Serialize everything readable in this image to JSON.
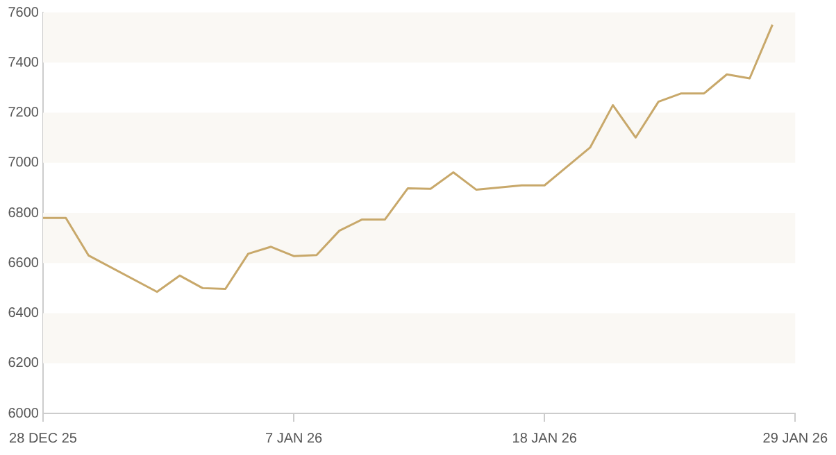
{
  "chart_data": {
    "type": "line",
    "categories": [
      "28 DEC 25",
      null,
      null,
      null,
      null,
      null,
      null,
      null,
      null,
      null,
      null,
      "7 JAN 26",
      null,
      null,
      null,
      null,
      null,
      null,
      null,
      null,
      null,
      null,
      "18 JAN 26",
      null,
      null,
      null,
      null,
      null,
      null,
      null,
      null,
      null,
      null,
      "29 JAN 26"
    ],
    "series": [
      {
        "color": "#c8a86a",
        "values": [
          6780,
          6780,
          6630,
          null,
          null,
          6485,
          6550,
          6500,
          6497,
          6637,
          6665,
          6628,
          6632,
          6729,
          6774,
          6774,
          6898,
          6896,
          6962,
          6893,
          null,
          6910,
          6910,
          null,
          7061,
          7230,
          7101,
          7244,
          7277,
          7277,
          7353,
          7337,
          7551,
          null
        ]
      }
    ],
    "ylim": [
      6000,
      7600
    ],
    "yticks": [
      6000,
      6200,
      6400,
      6600,
      6800,
      7000,
      7200,
      7400,
      7600
    ],
    "bands": [
      {
        "axis": "y",
        "from": 6200,
        "to": 6400,
        "color": "#faf8f4"
      },
      {
        "axis": "y",
        "from": 6600,
        "to": 6800,
        "color": "#faf8f4"
      },
      {
        "axis": "y",
        "from": 7000,
        "to": 7200,
        "color": "#faf8f4"
      },
      {
        "axis": "y",
        "from": 7400,
        "to": 7600,
        "color": "#faf8f4"
      }
    ],
    "grid": false,
    "legend": false,
    "marker": "none",
    "line_style": "solid"
  }
}
